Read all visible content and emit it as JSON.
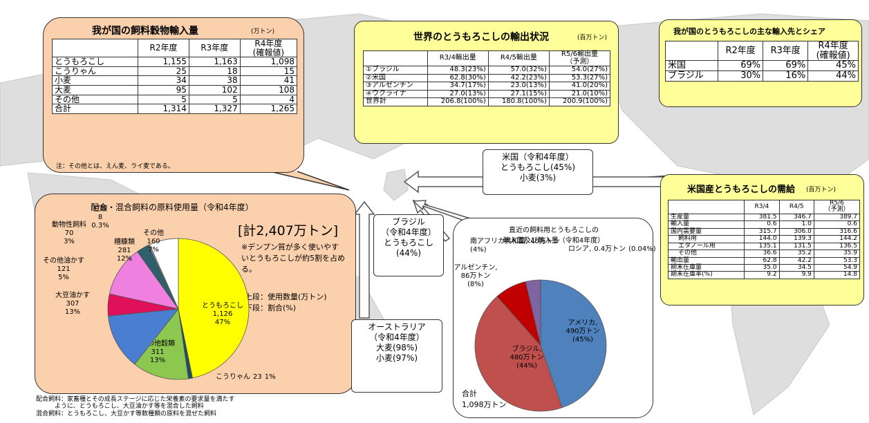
{
  "import_table": {
    "title": "我が国の飼料穀物輸入量",
    "unit": "(万トン)",
    "headers": [
      "R2年度",
      "R3年度",
      "R4年度\n(確報値)"
    ],
    "rows": [
      [
        "とうもろこし",
        "1,155",
        "1,163",
        "1,098"
      ],
      [
        "こうりゃん",
        "25",
        "18",
        "15"
      ],
      [
        "小麦",
        "34",
        "38",
        "41"
      ],
      [
        "大麦",
        "95",
        "102",
        "108"
      ],
      [
        "その他",
        "5",
        "5",
        "4"
      ],
      [
        "合計",
        "1,314",
        "1,327",
        "1,265"
      ]
    ],
    "note": "注：その他とは、えん麦、ライ麦である。"
  },
  "world_export_table": {
    "title": "世界のとうもろこしの輸出状況",
    "unit": "(百万トン)",
    "headers": [
      "R3/4輸出量",
      "R4/5輸出量",
      "R5/6輸出量\n（予測）"
    ],
    "rows": [
      [
        "①ブラジル",
        "48.3(23%)",
        "57.0(32%)",
        "54.0(27%)"
      ],
      [
        "②米国",
        "62.8(30%)",
        "42.2(23%)",
        "53.3(27%)"
      ],
      [
        "③アルゼンチン",
        "34.7(17%)",
        "23.0(13%)",
        "41.0(20%)"
      ],
      [
        "④ウクライナ",
        "27.0(13%)",
        "27.1(15%)",
        "21.0(10%)"
      ],
      [
        "世界計",
        "206.8(100%)",
        "180.8(100%)",
        "200.9(100%)"
      ]
    ]
  },
  "import_share_table": {
    "title": "我が国のとうもろこしの主な輸入先とシェア",
    "headers": [
      "R2年度",
      "R3年度",
      "R4年度\n(確報値)"
    ],
    "rows": [
      [
        "米国",
        "69%",
        "69%",
        "45%"
      ],
      [
        "ブラジル",
        "30%",
        "16%",
        "44%"
      ]
    ]
  },
  "us_supply_table": {
    "title": "米国産とうもろこしの需給",
    "unit": "(百万トン)",
    "headers": [
      "R3/4",
      "R4/5",
      "R5/6\n（予測）"
    ],
    "rows": [
      [
        "生産量",
        "381.5",
        "346.7",
        "389.7"
      ],
      [
        "輸入量",
        "0.6",
        "1.0",
        "0.6"
      ],
      [
        "国内需要量",
        "315.7",
        "306.0",
        "316.6"
      ],
      [
        "飼料用",
        "144.0",
        "139.3",
        "144.2"
      ],
      [
        "エタノール用",
        "135.1",
        "131.5",
        "136.5"
      ],
      [
        "その他",
        "36.6",
        "35.2",
        "35.9"
      ],
      [
        "輸出量",
        "62.8",
        "42.2",
        "53.3"
      ],
      [
        "期末在庫量",
        "35.0",
        "34.5",
        "54.9"
      ],
      [
        "期末在庫率(%)",
        "9.2",
        "9.9",
        "14.8"
      ]
    ]
  },
  "chart_data": [
    {
      "type": "pie",
      "title": "配合・混合飼料の原料使用量（令和4年度）",
      "total_label": "[計2,407万トン]",
      "note": "※デンプン質が多く使いやすいとうもろこしが約5割を占める。",
      "legend_note": "上段：使用数量(万トン)\n下段：割合(%)",
      "categories": [
        "とうもろこし",
        "こうりゃん",
        "その他穀類",
        "大豆油かす",
        "その他油かす",
        "糟糠類",
        "動物性飼料",
        "豆類",
        "その他"
      ],
      "values": [
        1126,
        23,
        311,
        307,
        121,
        281,
        70,
        8,
        160
      ],
      "value_labels": [
        "1,126",
        "23",
        "311",
        "307",
        "121",
        "281",
        "70",
        "8",
        "160"
      ],
      "share_labels": [
        "47%",
        "1%",
        "13%",
        "13%",
        "5%",
        "12%",
        "3%",
        "0.3%",
        "7%"
      ],
      "colors": [
        "#ffff00",
        "#1f4f5f",
        "#8cc850",
        "#4a7ed0",
        "#e0105a",
        "#f080e0",
        "#2f5f6a",
        "#9a9a9a",
        "#ffffff"
      ]
    },
    {
      "type": "pie",
      "title": "直近の飼料用とうもろこしの\n輸入国及び輸入量（令和4年度）",
      "total_label": "合計\n1,098万トン",
      "categories": [
        "アメリカ,",
        "ブラジル,",
        "アルゼンチン,",
        "南アフリカ共和国,",
        "ロシア,"
      ],
      "values": [
        490,
        480,
        86,
        40,
        0.4
      ],
      "amount_labels": [
        "490万トン",
        "480万トン",
        "86万トン",
        "40万トン",
        "0.4万トン"
      ],
      "share_labels": [
        "(45%)",
        "(44%)",
        "(8%)",
        "(4%)",
        "(0.04%)"
      ],
      "colors": [
        "#4f81bd",
        "#c0504d",
        "#c00000",
        "#8064a2",
        "#4bacc6"
      ]
    }
  ],
  "arrows": [
    {
      "label": "米国（令和4年度）\nとうもろこし(45%)\n小麦(3%)"
    },
    {
      "label": "ブラジル\n（令和4年度）\nとうもろこし\n(44%)"
    },
    {
      "label": "オーストラリア\n（令和4年度）\n大麦(98%)\n小麦(97%)"
    }
  ],
  "footnote": "配合飼料：家畜種とその成長ステージに応じた栄養素の要求量を満たす\n　　　ように、とうもろこし、大豆油かす等を混合した飼料\n混合飼料：とうもろこし、大豆かす等数種類の原料を混ぜた飼料"
}
